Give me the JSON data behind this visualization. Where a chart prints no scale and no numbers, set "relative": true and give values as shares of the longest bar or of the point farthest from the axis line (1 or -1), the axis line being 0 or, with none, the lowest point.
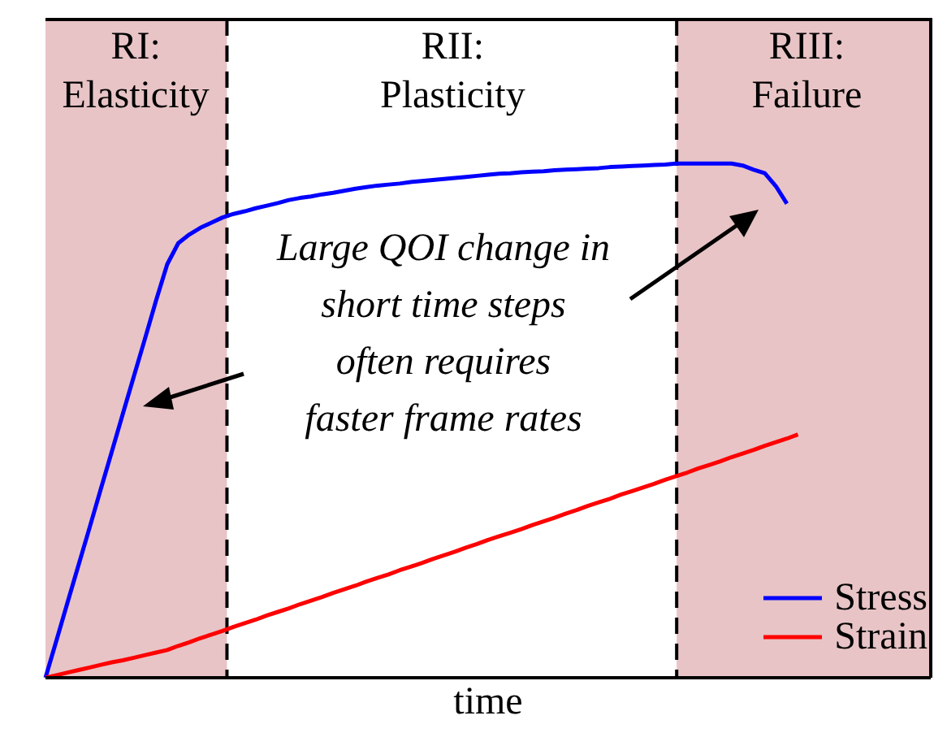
{
  "chart_data": {
    "type": "line",
    "relative": true,
    "xlabel": "time",
    "categories": [
      null,
      null,
      null,
      null,
      null,
      null,
      null,
      null,
      null,
      null,
      null,
      null,
      null,
      null,
      null,
      null,
      null,
      null,
      null,
      null,
      null,
      null,
      null,
      null,
      null,
      null,
      null,
      null,
      null,
      null,
      null,
      null,
      null,
      null,
      null,
      null,
      null,
      null,
      null,
      null,
      null,
      null,
      null,
      null,
      null,
      null,
      null,
      null,
      null,
      null,
      null,
      null,
      null,
      null,
      null,
      null,
      null,
      null,
      null,
      null,
      null,
      null,
      null,
      null,
      null,
      null,
      null,
      null,
      null,
      null,
      null,
      null,
      null,
      null,
      null,
      null,
      null,
      null,
      null,
      null,
      null
    ],
    "series": [
      {
        "name": "Stress",
        "color": "#0000ff",
        "values": [
          0,
          0.073,
          0.147,
          0.22,
          0.293,
          0.367,
          0.44,
          0.514,
          0.587,
          0.66,
          0.734,
          0.804,
          0.845,
          0.862,
          0.875,
          0.885,
          0.895,
          0.902,
          0.907,
          0.913,
          0.918,
          0.923,
          0.929,
          0.933,
          0.936,
          0.94,
          0.943,
          0.947,
          0.951,
          0.954,
          0.957,
          0.959,
          0.961,
          0.964,
          0.966,
          0.968,
          0.97,
          0.972,
          0.974,
          0.976,
          0.978,
          0.98,
          0.981,
          0.983,
          0.984,
          0.985,
          0.987,
          0.988,
          0.989,
          0.99,
          0.991,
          0.993,
          0.994,
          0.995,
          0.996,
          0.997,
          0.998,
          1,
          1,
          1,
          1,
          1,
          1,
          0.996,
          0.988,
          0.981,
          0.956,
          0.922,
          null,
          null,
          null,
          null,
          null,
          null,
          null,
          null,
          null,
          null,
          null,
          null,
          null
        ]
      },
      {
        "name": "Strain",
        "color": "#ff0000",
        "values": [
          0,
          0.005,
          0.01,
          0.015,
          0.02,
          0.025,
          0.03,
          0.034,
          0.039,
          0.044,
          0.049,
          0.054,
          0.062,
          0.069,
          0.077,
          0.084,
          0.091,
          0.099,
          0.106,
          0.113,
          0.121,
          0.128,
          0.135,
          0.143,
          0.15,
          0.157,
          0.165,
          0.172,
          0.179,
          0.187,
          0.194,
          0.201,
          0.209,
          0.216,
          0.223,
          0.231,
          0.238,
          0.245,
          0.253,
          0.26,
          0.268,
          0.275,
          0.282,
          0.289,
          0.297,
          0.304,
          0.311,
          0.319,
          0.326,
          0.334,
          0.341,
          0.348,
          0.356,
          0.363,
          0.37,
          0.377,
          0.385,
          0.392,
          0.399,
          0.407,
          0.414,
          0.421,
          0.429,
          0.436,
          0.443,
          0.451,
          0.458,
          0.465,
          0.473,
          null,
          null,
          null,
          null,
          null,
          null,
          null,
          null,
          null,
          null,
          null,
          null
        ]
      }
    ],
    "annotations": [
      "RI: Elasticity",
      "RII: Plasticity",
      "RIII: Failure",
      "Large QOI change in short time steps often requires faster frame rates"
    ],
    "legend": "bottom right",
    "line_style": "solid"
  }
}
